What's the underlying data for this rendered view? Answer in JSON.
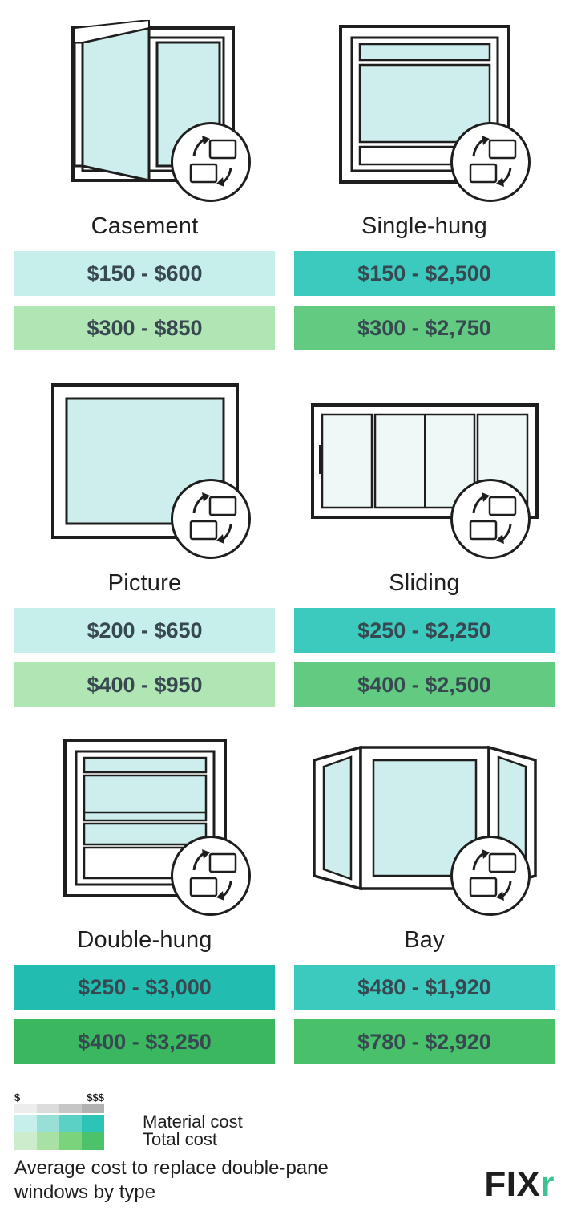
{
  "caption": "Average cost to replace double-pane windows by type",
  "legend": {
    "material_label": "Material cost",
    "total_label": "Total cost",
    "scale_low": "$",
    "scale_high": "$$$",
    "gray_scale": [
      "#ededed",
      "#dcdcdc",
      "#c6c6c6",
      "#b1b1b1"
    ],
    "teal_scale": [
      "#c6eeea",
      "#98e0d7",
      "#5ad1c4",
      "#2bc4b6"
    ],
    "green_scale": [
      "#cdeccb",
      "#a8e1a4",
      "#7bd47c",
      "#4cc26b"
    ]
  },
  "logo": {
    "text": "FIX",
    "accent": "r"
  },
  "windows": [
    {
      "name": "Casement",
      "material_price": "$150 - $600",
      "total_price": "$300 - $850",
      "material_color": "#c6eeea",
      "total_color": "#b0e5b4",
      "icon": "casement"
    },
    {
      "name": "Single-hung",
      "material_price": "$150 - $2,500",
      "total_price": "$300 - $2,750",
      "material_color": "#3bcabd",
      "total_color": "#62cb81",
      "icon": "singlehung"
    },
    {
      "name": "Picture",
      "material_price": "$200 - $650",
      "total_price": "$400 - $950",
      "material_color": "#c6eeea",
      "total_color": "#b0e5b4",
      "icon": "picture"
    },
    {
      "name": "Sliding",
      "material_price": "$250 - $2,250",
      "total_price": "$400 - $2,500",
      "material_color": "#3bcabd",
      "total_color": "#62cb81",
      "icon": "sliding"
    },
    {
      "name": "Double-hung",
      "material_price": "$250 - $3,000",
      "total_price": "$400 - $3,250",
      "material_color": "#22bdb0",
      "total_color": "#3bb75f",
      "icon": "doublehung"
    },
    {
      "name": "Bay",
      "material_price": "$480 - $1,920",
      "total_price": "$780 - $2,920",
      "material_color": "#3bcabd",
      "total_color": "#49c06a",
      "icon": "bay"
    }
  ]
}
